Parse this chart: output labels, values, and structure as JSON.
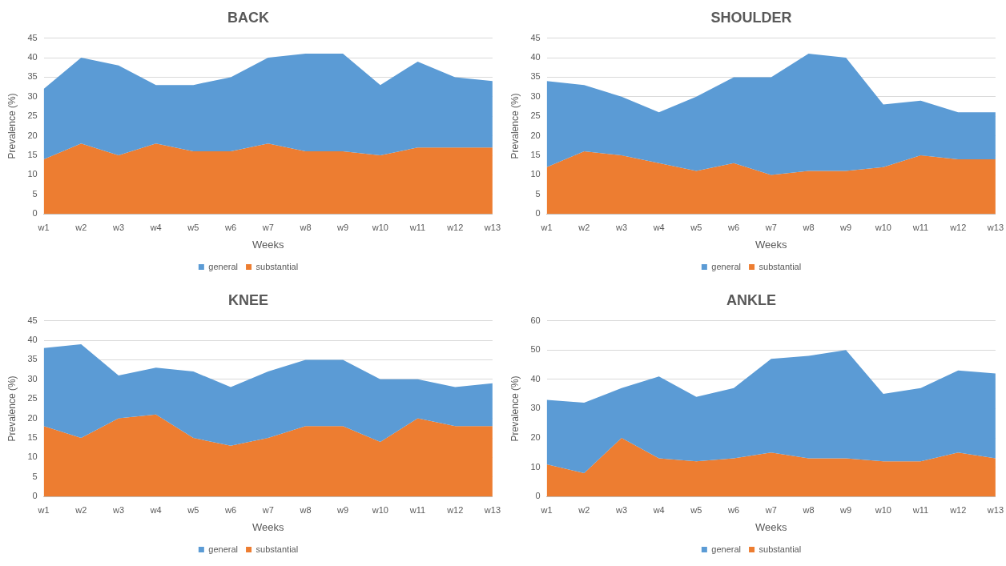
{
  "chart_data": [
    {
      "type": "area",
      "title": "BACK",
      "xlabel": "Weeks",
      "ylabel": "Prevalence (%)",
      "categories": [
        "w1",
        "w2",
        "w3",
        "w4",
        "w5",
        "w6",
        "w7",
        "w8",
        "w9",
        "w10",
        "w11",
        "w12",
        "w13"
      ],
      "ylim": [
        0,
        45
      ],
      "yticks": [
        0,
        5,
        10,
        15,
        20,
        25,
        30,
        35,
        40,
        45
      ],
      "grid": "y",
      "legend": "bottom",
      "series": [
        {
          "name": "general",
          "color": "#5b9bd5",
          "values": [
            32,
            40,
            38,
            33,
            33,
            35,
            40,
            41,
            41,
            33,
            39,
            35,
            34
          ]
        },
        {
          "name": "substantial",
          "color": "#ed7d31",
          "values": [
            14,
            18,
            15,
            18,
            16,
            16,
            18,
            16,
            16,
            15,
            17,
            17,
            17
          ]
        }
      ]
    },
    {
      "type": "area",
      "title": "SHOULDER",
      "xlabel": "Weeks",
      "ylabel": "Prevalence (%)",
      "categories": [
        "w1",
        "w2",
        "w3",
        "w4",
        "w5",
        "w6",
        "w7",
        "w8",
        "w9",
        "w10",
        "w11",
        "w12",
        "w13"
      ],
      "ylim": [
        0,
        45
      ],
      "yticks": [
        0,
        5,
        10,
        15,
        20,
        25,
        30,
        35,
        40,
        45
      ],
      "grid": "y",
      "legend": "bottom",
      "series": [
        {
          "name": "general",
          "color": "#5b9bd5",
          "values": [
            34,
            33,
            30,
            26,
            30,
            35,
            35,
            41,
            40,
            28,
            29,
            26,
            26
          ]
        },
        {
          "name": "substantial",
          "color": "#ed7d31",
          "values": [
            12,
            16,
            15,
            13,
            11,
            13,
            10,
            11,
            11,
            12,
            15,
            14,
            14
          ]
        }
      ]
    },
    {
      "type": "area",
      "title": "KNEE",
      "xlabel": "Weeks",
      "ylabel": "Prevalence (%)",
      "categories": [
        "w1",
        "w2",
        "w3",
        "w4",
        "w5",
        "w6",
        "w7",
        "w8",
        "w9",
        "w10",
        "w11",
        "w12",
        "w13"
      ],
      "ylim": [
        0,
        45
      ],
      "yticks": [
        0,
        5,
        10,
        15,
        20,
        25,
        30,
        35,
        40,
        45
      ],
      "grid": "y",
      "legend": "bottom",
      "series": [
        {
          "name": "general",
          "color": "#5b9bd5",
          "values": [
            38,
            39,
            31,
            33,
            32,
            28,
            32,
            35,
            35,
            30,
            30,
            28,
            29
          ]
        },
        {
          "name": "substantial",
          "color": "#ed7d31",
          "values": [
            18,
            15,
            20,
            21,
            15,
            13,
            15,
            18,
            18,
            14,
            20,
            18,
            18
          ]
        }
      ]
    },
    {
      "type": "area",
      "title": "ANKLE",
      "xlabel": "Weeks",
      "ylabel": "Prevalence (%)",
      "categories": [
        "w1",
        "w2",
        "w3",
        "w4",
        "w5",
        "w6",
        "w7",
        "w8",
        "w9",
        "w10",
        "w11",
        "w12",
        "w13"
      ],
      "ylim": [
        0,
        60
      ],
      "yticks": [
        0,
        10,
        20,
        30,
        40,
        50,
        60
      ],
      "grid": "y",
      "legend": "bottom",
      "series": [
        {
          "name": "general",
          "color": "#5b9bd5",
          "values": [
            33,
            32,
            37,
            41,
            34,
            37,
            47,
            48,
            50,
            35,
            37,
            43,
            42
          ]
        },
        {
          "name": "substantial",
          "color": "#ed7d31",
          "values": [
            11,
            8,
            20,
            13,
            12,
            13,
            15,
            13,
            13,
            12,
            12,
            15,
            13
          ]
        }
      ]
    }
  ]
}
